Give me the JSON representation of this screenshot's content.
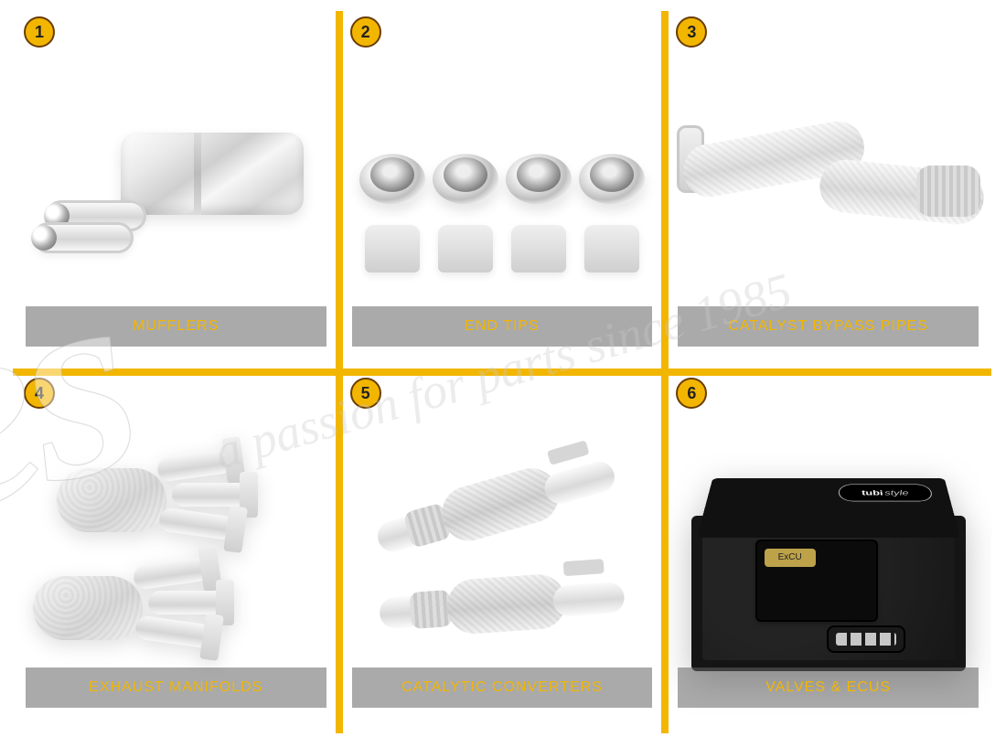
{
  "accent_color": "#f2b600",
  "badge_border_color": "#6a3d00",
  "caption_bg": "rgba(100,100,100,0.55)",
  "caption_text_color": "#f2b600",
  "watermark": {
    "tagline": "a passion for parts since 1985",
    "brand_fragment": "ares"
  },
  "ecu_logo": {
    "main": "tubi",
    "suffix": "style",
    "module_label": "ExCU"
  },
  "cells": [
    {
      "idx": "1",
      "caption": "MUFFLERS"
    },
    {
      "idx": "2",
      "caption": "END TIPS"
    },
    {
      "idx": "3",
      "caption": "CATALYST BYPASS PIPES"
    },
    {
      "idx": "4",
      "caption": "EXHAUST MANIFOLDS"
    },
    {
      "idx": "5",
      "caption": "CATALYTIC CONVERTERS"
    },
    {
      "idx": "6",
      "caption": "VALVES & ECUs"
    }
  ]
}
